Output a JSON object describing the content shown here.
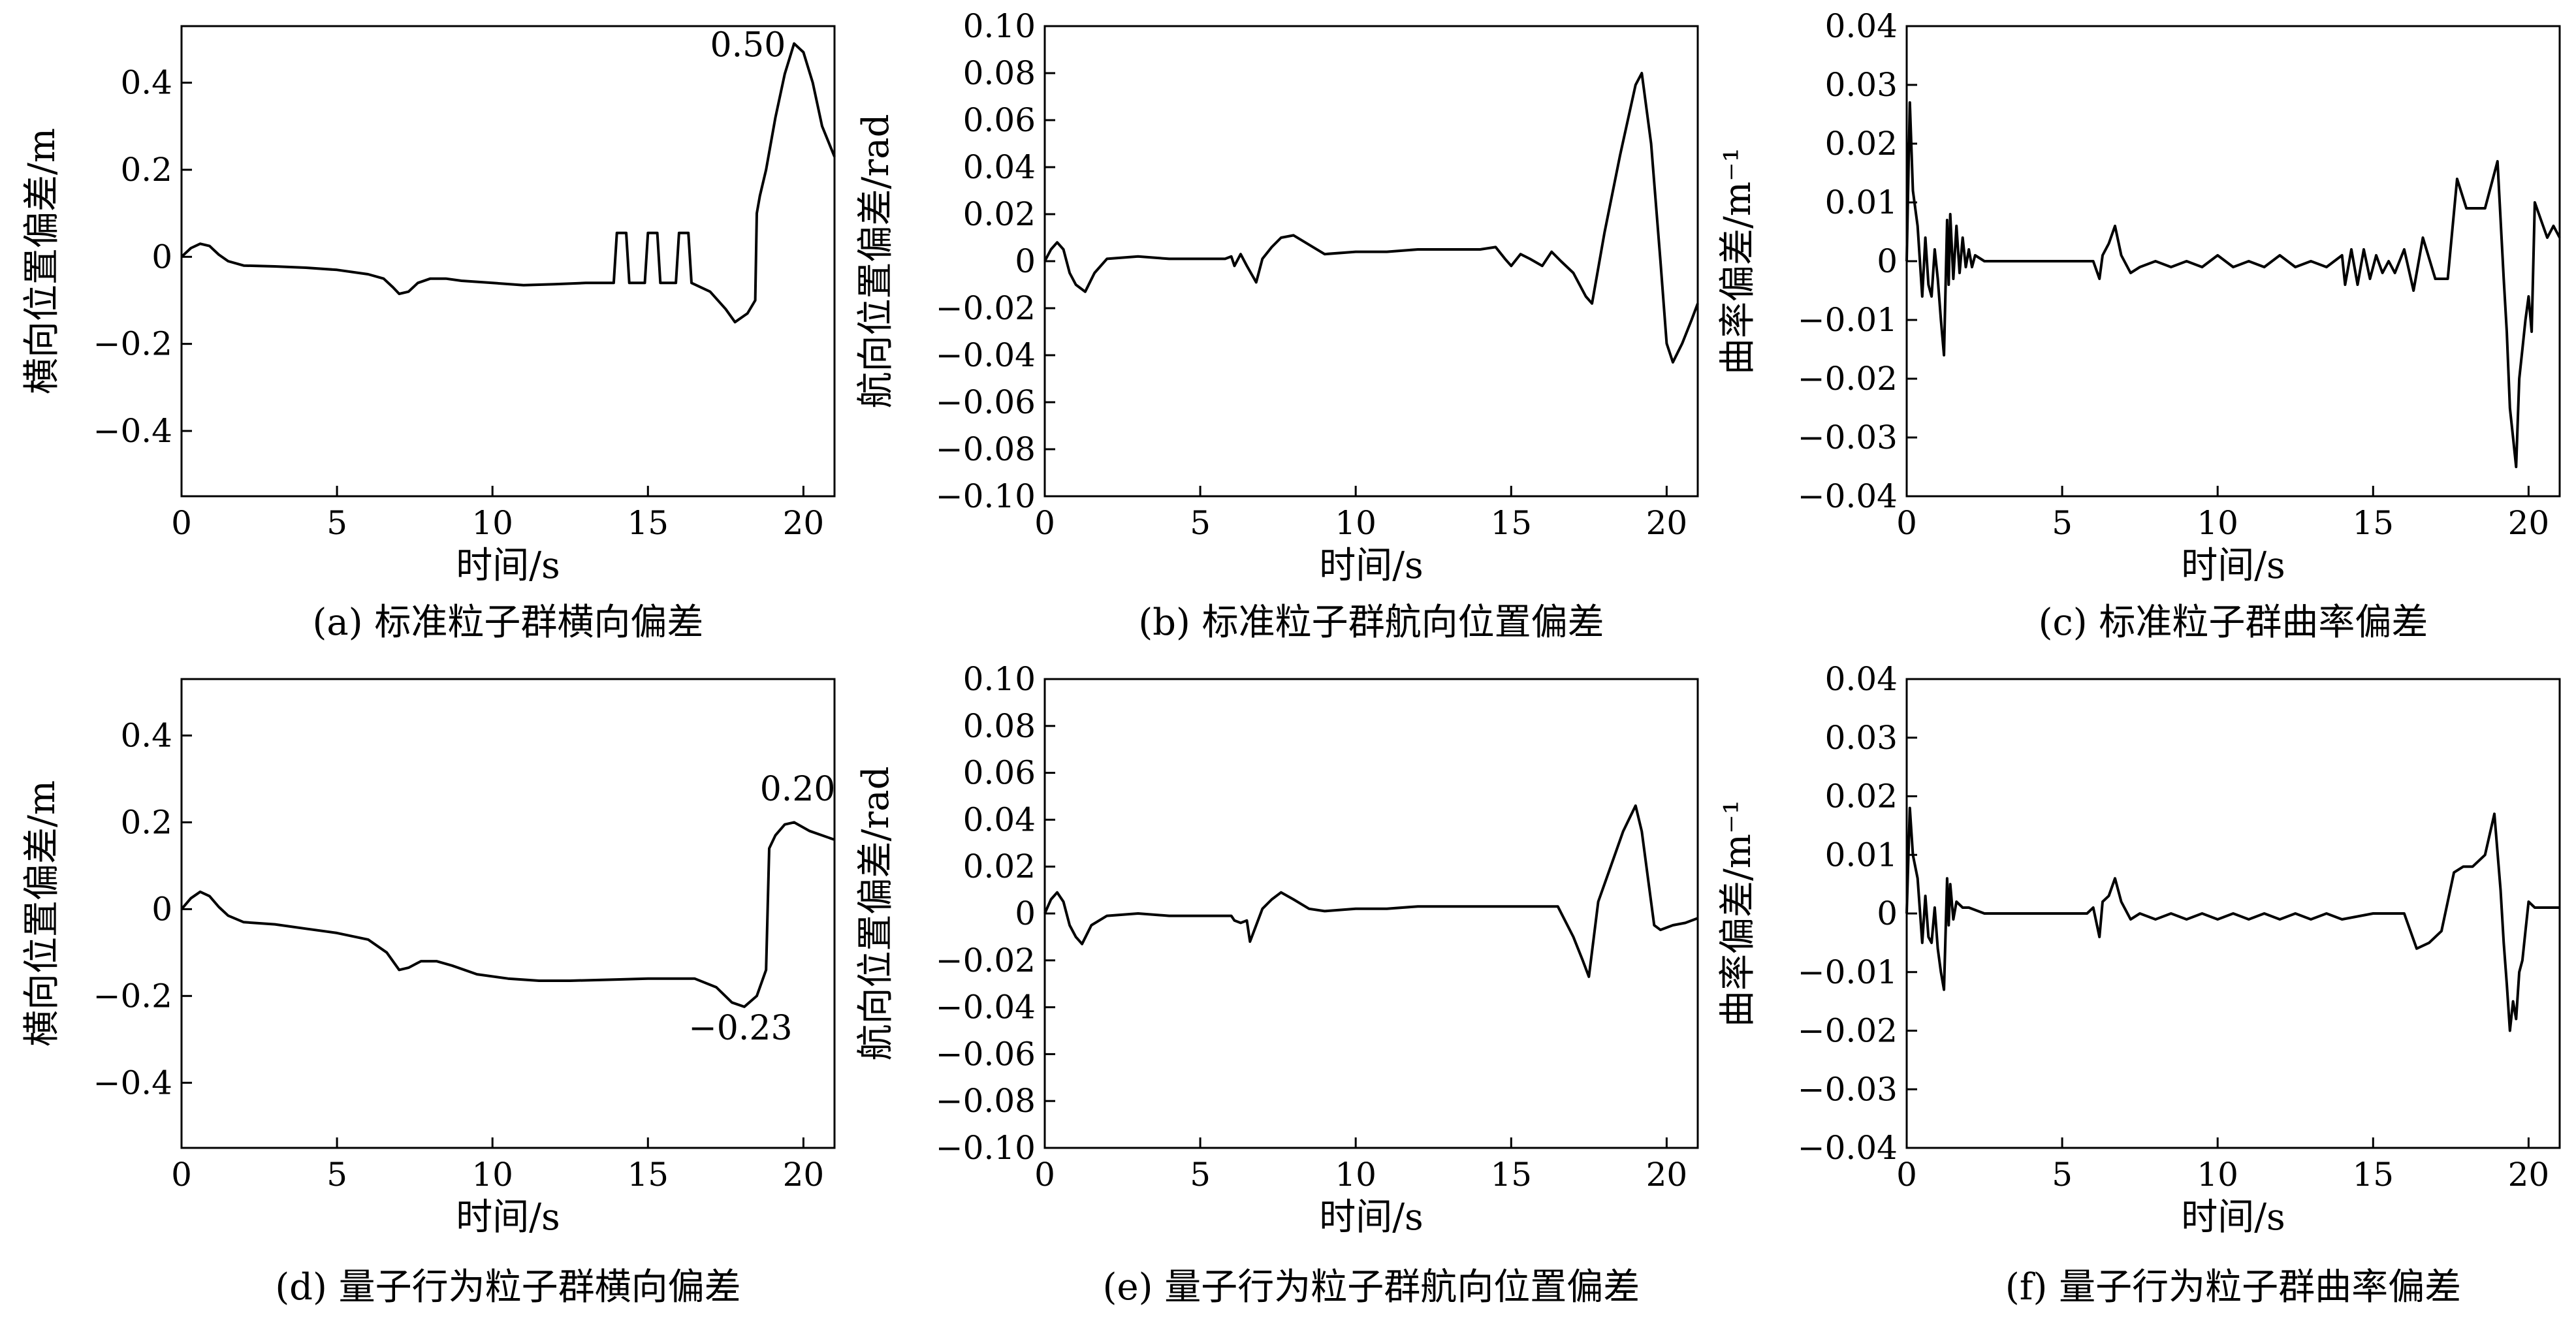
{
  "chart_data": [
    {
      "type": "line",
      "caption": "(a) 标准粒子群横向偏差",
      "xlabel": "时间/s",
      "ylabel": "横向位置偏差/m",
      "xlim": [
        0,
        21
      ],
      "ylim": [
        -0.55,
        0.53
      ],
      "xticks": [
        0,
        5,
        10,
        15,
        20
      ],
      "xtick_labels": [
        "0",
        "5",
        "10",
        "15",
        "20"
      ],
      "yticks": [
        0.4,
        0.2,
        0,
        -0.2,
        -0.4
      ],
      "ytick_labels": [
        "0.4",
        "0.2",
        "0",
        "−0.2",
        "−0.4"
      ],
      "annotations": [
        {
          "text": "0.50",
          "x": 17.0,
          "y": 0.46
        }
      ],
      "x": [
        0,
        0.3,
        0.6,
        0.9,
        1.2,
        1.5,
        2,
        3,
        4,
        5,
        6,
        6.5,
        6.8,
        7.0,
        7.3,
        7.6,
        8,
        8.5,
        9,
        10,
        11,
        12,
        13,
        13.9,
        14.0,
        14.3,
        14.4,
        14.9,
        15.0,
        15.3,
        15.4,
        15.9,
        16.0,
        16.3,
        16.4,
        17.0,
        17.5,
        17.8,
        18.2,
        18.45,
        18.5,
        18.6,
        18.8,
        19.1,
        19.4,
        19.7,
        20.0,
        20.3,
        20.6,
        21
      ],
      "y": [
        0,
        0.02,
        0.03,
        0.025,
        0.005,
        -0.01,
        -0.02,
        -0.022,
        -0.025,
        -0.03,
        -0.04,
        -0.05,
        -0.07,
        -0.085,
        -0.08,
        -0.06,
        -0.05,
        -0.05,
        -0.055,
        -0.06,
        -0.065,
        -0.063,
        -0.06,
        -0.06,
        0.055,
        0.055,
        -0.06,
        -0.06,
        0.055,
        0.055,
        -0.06,
        -0.06,
        0.055,
        0.055,
        -0.06,
        -0.08,
        -0.12,
        -0.15,
        -0.13,
        -0.1,
        0.1,
        0.14,
        0.2,
        0.32,
        0.42,
        0.49,
        0.47,
        0.4,
        0.3,
        0.23
      ]
    },
    {
      "type": "line",
      "caption": "(b) 标准粒子群航向位置偏差",
      "xlabel": "时间/s",
      "ylabel": "航向位置偏差/rad",
      "xlim": [
        0,
        21
      ],
      "ylim": [
        -0.1,
        0.1
      ],
      "xticks": [
        0,
        5,
        10,
        15,
        20
      ],
      "xtick_labels": [
        "0",
        "5",
        "10",
        "15",
        "20"
      ],
      "yticks": [
        0.1,
        0.08,
        0.06,
        0.04,
        0.02,
        0,
        -0.02,
        -0.04,
        -0.06,
        -0.08,
        -0.1
      ],
      "ytick_labels": [
        "0.10",
        "0.08",
        "0.06",
        "0.04",
        "0.02",
        "0",
        "−0.02",
        "−0.04",
        "−0.06",
        "−0.08",
        "−0.10"
      ],
      "annotations": [],
      "x": [
        0,
        0.2,
        0.4,
        0.6,
        0.8,
        1.0,
        1.3,
        1.6,
        2,
        3,
        4,
        5,
        5.8,
        6.0,
        6.1,
        6.3,
        6.5,
        6.8,
        7.0,
        7.3,
        7.6,
        8,
        8.5,
        9,
        10,
        11,
        12,
        13,
        14,
        14.5,
        14.8,
        15.0,
        15.3,
        15.6,
        16.0,
        16.3,
        16.6,
        17.0,
        17.4,
        17.6,
        18.0,
        18.5,
        19.0,
        19.2,
        19.5,
        19.8,
        20.0,
        20.2,
        20.5,
        20.8,
        21
      ],
      "y": [
        0,
        0.005,
        0.008,
        0.005,
        -0.005,
        -0.01,
        -0.013,
        -0.005,
        0.001,
        0.002,
        0.001,
        0.001,
        0.001,
        0.002,
        -0.002,
        0.003,
        -0.002,
        -0.009,
        0.001,
        0.006,
        0.01,
        0.011,
        0.007,
        0.003,
        0.004,
        0.004,
        0.005,
        0.005,
        0.005,
        0.006,
        0.001,
        -0.002,
        0.003,
        0.001,
        -0.002,
        0.004,
        0.0,
        -0.005,
        -0.015,
        -0.018,
        0.012,
        0.045,
        0.075,
        0.08,
        0.05,
        0.0,
        -0.035,
        -0.043,
        -0.035,
        -0.025,
        -0.018
      ]
    },
    {
      "type": "line",
      "caption": "(c) 标准粒子群曲率偏差",
      "xlabel": "时间/s",
      "ylabel": "曲率偏差/m⁻¹",
      "xlim": [
        0,
        21
      ],
      "ylim": [
        -0.04,
        0.04
      ],
      "xticks": [
        0,
        5,
        10,
        15,
        20
      ],
      "xtick_labels": [
        "0",
        "5",
        "10",
        "15",
        "20"
      ],
      "yticks": [
        0.04,
        0.03,
        0.02,
        0.01,
        0,
        -0.01,
        -0.02,
        -0.03,
        -0.04
      ],
      "ytick_labels": [
        "0.04",
        "0.03",
        "0.02",
        "0.01",
        "0",
        "−0.01",
        "−0.02",
        "−0.03",
        "−0.04"
      ],
      "annotations": [],
      "x": [
        0,
        0.1,
        0.2,
        0.35,
        0.5,
        0.6,
        0.7,
        0.8,
        0.9,
        1.0,
        1.1,
        1.2,
        1.3,
        1.35,
        1.4,
        1.5,
        1.6,
        1.7,
        1.8,
        1.9,
        2.0,
        2.1,
        2.2,
        2.5,
        3,
        4,
        5,
        5.8,
        6.0,
        6.2,
        6.3,
        6.5,
        6.7,
        6.9,
        7.2,
        7.5,
        8,
        8.5,
        9,
        9.5,
        10,
        10.5,
        11,
        11.5,
        12,
        12.5,
        13,
        13.5,
        14,
        14.1,
        14.3,
        14.5,
        14.7,
        14.9,
        15.1,
        15.3,
        15.5,
        15.7,
        16,
        16.3,
        16.6,
        17.0,
        17.4,
        17.7,
        18.0,
        18.3,
        18.6,
        19.0,
        19.2,
        19.3,
        19.4,
        19.5,
        19.6,
        19.7,
        19.8,
        19.9,
        20.0,
        20.1,
        20.2,
        20.4,
        20.6,
        20.8,
        21
      ],
      "y": [
        0,
        0.027,
        0.012,
        0.006,
        -0.006,
        0.004,
        -0.004,
        -0.006,
        0.002,
        -0.003,
        -0.01,
        -0.016,
        0.007,
        -0.004,
        0.008,
        -0.003,
        0.006,
        -0.002,
        0.004,
        -0.001,
        0.002,
        -0.001,
        0.001,
        0.0,
        0.0,
        0.0,
        0.0,
        0.0,
        0.0,
        -0.003,
        0.001,
        0.003,
        0.006,
        0.001,
        -0.002,
        -0.001,
        0.0,
        -0.001,
        0.0,
        -0.001,
        0.001,
        -0.001,
        0.0,
        -0.001,
        0.001,
        -0.001,
        0.0,
        -0.001,
        0.001,
        -0.004,
        0.002,
        -0.004,
        0.002,
        -0.003,
        0.001,
        -0.002,
        0.0,
        -0.002,
        0.002,
        -0.005,
        0.004,
        -0.003,
        -0.003,
        0.014,
        0.009,
        0.009,
        0.009,
        0.017,
        -0.003,
        -0.012,
        -0.025,
        -0.03,
        -0.035,
        -0.02,
        -0.015,
        -0.01,
        -0.006,
        -0.012,
        0.01,
        0.007,
        0.004,
        0.006,
        0.004
      ]
    },
    {
      "type": "line",
      "caption": "(d) 量子行为粒子群横向偏差",
      "xlabel": "时间/s",
      "ylabel": "横向位置偏差/m",
      "xlim": [
        0,
        21
      ],
      "ylim": [
        -0.55,
        0.53
      ],
      "xticks": [
        0,
        5,
        10,
        15,
        20
      ],
      "xtick_labels": [
        "0",
        "5",
        "10",
        "15",
        "20"
      ],
      "yticks": [
        0.4,
        0.2,
        0,
        -0.2,
        -0.4
      ],
      "ytick_labels": [
        "0.4",
        "0.2",
        "0",
        "−0.2",
        "−0.4"
      ],
      "annotations": [
        {
          "text": "0.20",
          "x": 18.6,
          "y": 0.25
        },
        {
          "text": "−0.23",
          "x": 16.3,
          "y": -0.3
        }
      ],
      "x": [
        0,
        0.3,
        0.6,
        0.9,
        1.2,
        1.5,
        2,
        3,
        4,
        5,
        6,
        6.6,
        7.0,
        7.3,
        7.7,
        8.2,
        8.7,
        9.5,
        10.5,
        11.5,
        12.5,
        14,
        15,
        16.5,
        17.2,
        17.7,
        18.1,
        18.5,
        18.8,
        18.9,
        19.1,
        19.4,
        19.7,
        20.2,
        21
      ],
      "y": [
        0,
        0.025,
        0.04,
        0.03,
        0.005,
        -0.015,
        -0.03,
        -0.035,
        -0.045,
        -0.055,
        -0.07,
        -0.1,
        -0.14,
        -0.135,
        -0.12,
        -0.12,
        -0.13,
        -0.15,
        -0.16,
        -0.165,
        -0.165,
        -0.162,
        -0.16,
        -0.16,
        -0.18,
        -0.215,
        -0.225,
        -0.2,
        -0.14,
        0.14,
        0.17,
        0.195,
        0.2,
        0.18,
        0.16
      ]
    },
    {
      "type": "line",
      "caption": "(e) 量子行为粒子群航向位置偏差",
      "xlabel": "时间/s",
      "ylabel": "航向位置偏差/rad",
      "xlim": [
        0,
        21
      ],
      "ylim": [
        -0.1,
        0.1
      ],
      "xticks": [
        0,
        5,
        10,
        15,
        20
      ],
      "xtick_labels": [
        "0",
        "5",
        "10",
        "15",
        "20"
      ],
      "yticks": [
        0.1,
        0.08,
        0.06,
        0.04,
        0.02,
        0,
        -0.02,
        -0.04,
        -0.06,
        -0.08,
        -0.1
      ],
      "ytick_labels": [
        "0.10",
        "0.08",
        "0.06",
        "0.04",
        "0.02",
        "0",
        "−0.02",
        "−0.04",
        "−0.06",
        "−0.08",
        "−0.10"
      ],
      "annotations": [],
      "x": [
        0,
        0.2,
        0.4,
        0.6,
        0.8,
        1.0,
        1.2,
        1.5,
        2,
        3,
        4,
        5,
        6,
        6.1,
        6.3,
        6.5,
        6.6,
        6.8,
        7.0,
        7.3,
        7.6,
        8,
        8.5,
        9,
        10,
        11,
        12,
        13,
        14,
        15,
        16,
        16.5,
        17.0,
        17.3,
        17.5,
        17.8,
        18.2,
        18.6,
        19.0,
        19.2,
        19.4,
        19.6,
        19.8,
        20.2,
        20.6,
        21
      ],
      "y": [
        0,
        0.006,
        0.009,
        0.005,
        -0.005,
        -0.01,
        -0.013,
        -0.005,
        -0.001,
        0.0,
        -0.001,
        -0.001,
        -0.001,
        -0.003,
        -0.004,
        -0.003,
        -0.012,
        -0.005,
        0.002,
        0.006,
        0.009,
        0.006,
        0.002,
        0.001,
        0.002,
        0.002,
        0.003,
        0.003,
        0.003,
        0.003,
        0.003,
        0.003,
        -0.01,
        -0.02,
        -0.027,
        0.005,
        0.02,
        0.035,
        0.046,
        0.035,
        0.015,
        -0.005,
        -0.007,
        -0.005,
        -0.004,
        -0.002
      ]
    },
    {
      "type": "line",
      "caption": "(f) 量子行为粒子群曲率偏差",
      "xlabel": "时间/s",
      "ylabel": "曲率偏差/m⁻¹",
      "xlim": [
        0,
        21
      ],
      "ylim": [
        -0.04,
        0.04
      ],
      "xticks": [
        0,
        5,
        10,
        15,
        20
      ],
      "xtick_labels": [
        "0",
        "5",
        "10",
        "15",
        "20"
      ],
      "yticks": [
        0.04,
        0.03,
        0.02,
        0.01,
        0,
        -0.01,
        -0.02,
        -0.03,
        -0.04
      ],
      "ytick_labels": [
        "0.04",
        "0.03",
        "0.02",
        "0.01",
        "0",
        "−0.01",
        "−0.02",
        "−0.03",
        "−0.04"
      ],
      "annotations": [],
      "x": [
        0,
        0.1,
        0.2,
        0.35,
        0.5,
        0.6,
        0.7,
        0.8,
        0.9,
        1.0,
        1.1,
        1.2,
        1.3,
        1.35,
        1.4,
        1.5,
        1.6,
        1.8,
        2.0,
        2.5,
        3,
        4,
        5,
        5.8,
        6.0,
        6.2,
        6.3,
        6.5,
        6.7,
        6.9,
        7.2,
        7.5,
        8,
        8.5,
        9,
        9.5,
        10,
        10.5,
        11,
        11.5,
        12,
        12.5,
        13,
        13.5,
        14,
        15,
        16,
        16.4,
        16.8,
        17.2,
        17.6,
        17.9,
        18.2,
        18.6,
        18.9,
        19.1,
        19.2,
        19.3,
        19.4,
        19.5,
        19.6,
        19.7,
        19.8,
        19.9,
        20.0,
        20.2,
        20.5,
        20.8,
        21
      ],
      "y": [
        0,
        0.018,
        0.01,
        0.006,
        -0.005,
        0.003,
        -0.004,
        -0.005,
        0.001,
        -0.006,
        -0.01,
        -0.013,
        0.006,
        -0.002,
        0.005,
        -0.001,
        0.002,
        0.001,
        0.001,
        0.0,
        0.0,
        0.0,
        0.0,
        0.0,
        0.001,
        -0.004,
        0.002,
        0.003,
        0.006,
        0.002,
        -0.001,
        0.0,
        -0.001,
        0.0,
        -0.001,
        0.0,
        -0.001,
        0.0,
        -0.001,
        0.0,
        -0.001,
        0.0,
        -0.001,
        0.0,
        -0.001,
        0.0,
        0.0,
        -0.006,
        -0.005,
        -0.003,
        0.007,
        0.008,
        0.008,
        0.01,
        0.017,
        0.004,
        -0.005,
        -0.012,
        -0.02,
        -0.015,
        -0.018,
        -0.01,
        -0.008,
        -0.003,
        0.002,
        0.001,
        0.001,
        0.001,
        0.001
      ]
    }
  ]
}
